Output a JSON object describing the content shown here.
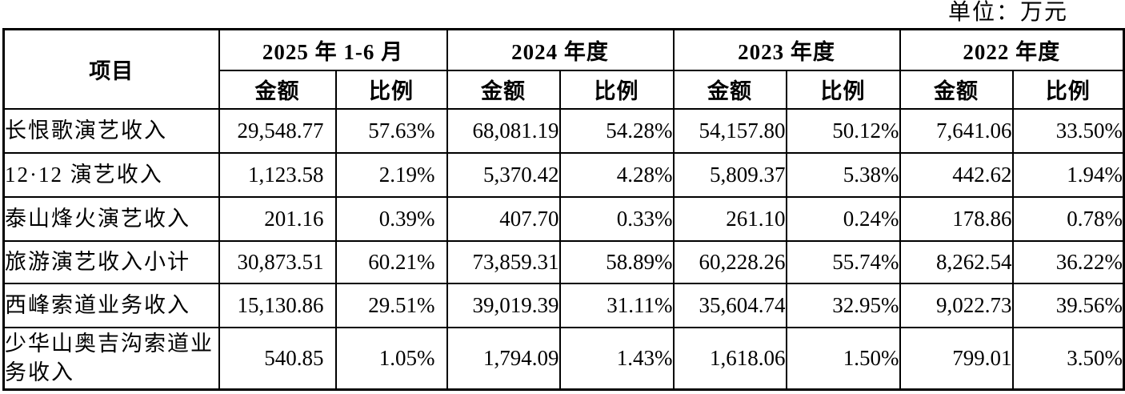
{
  "unit_label": "单位：万元",
  "colors": {
    "text": "#000000",
    "border": "#000000",
    "background": "#ffffff"
  },
  "table": {
    "item_header": "项目",
    "amount_header": "金额",
    "ratio_header": "比例",
    "period_headers": [
      "2025 年 1-6 月",
      "2024 年度",
      "2023 年度",
      "2022 年度"
    ],
    "rows": [
      {
        "item": "长恨歌演艺收入",
        "values": [
          "29,548.77",
          "57.63%",
          "68,081.19",
          "54.28%",
          "54,157.80",
          "50.12%",
          "7,641.06",
          "33.50%"
        ]
      },
      {
        "item": "12·12 演艺收入",
        "values": [
          "1,123.58",
          "2.19%",
          "5,370.42",
          "4.28%",
          "5,809.37",
          "5.38%",
          "442.62",
          "1.94%"
        ]
      },
      {
        "item": "泰山烽火演艺收入",
        "values": [
          "201.16",
          "0.39%",
          "407.70",
          "0.33%",
          "261.10",
          "0.24%",
          "178.86",
          "0.78%"
        ]
      },
      {
        "item": "旅游演艺收入小计",
        "values": [
          "30,873.51",
          "60.21%",
          "73,859.31",
          "58.89%",
          "60,228.26",
          "55.74%",
          "8,262.54",
          "36.22%"
        ]
      },
      {
        "item": "西峰索道业务收入",
        "values": [
          "15,130.86",
          "29.51%",
          "39,019.39",
          "31.11%",
          "35,604.74",
          "32.95%",
          "9,022.73",
          "39.56%"
        ]
      },
      {
        "item": "少华山奥吉沟索道业务收入",
        "values": [
          "540.85",
          "1.05%",
          "1,794.09",
          "1.43%",
          "1,618.06",
          "1.50%",
          "799.01",
          "3.50%"
        ]
      }
    ]
  }
}
